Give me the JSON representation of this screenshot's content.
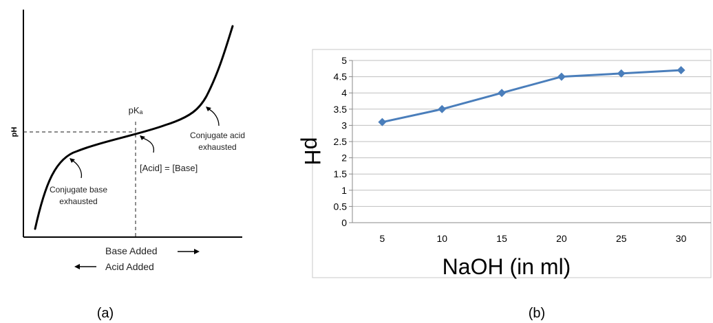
{
  "chart_data": [
    {
      "type": "line",
      "panel_label": "(a)",
      "ylabel": "pH",
      "pka_label": "pKₐ",
      "x_label_forward": "Base Added",
      "x_label_reverse": "Acid Added",
      "annotations": {
        "equal": "[Acid] = [Base]",
        "base_line1": "Conjugate base",
        "base_line2": "exhausted",
        "acid_line1": "Conjugate acid",
        "acid_line2": "exhausted"
      },
      "grid": false
    },
    {
      "type": "line",
      "panel_label": "(b)",
      "xlabel": "NaOH (in ml)",
      "ylabel": "pH",
      "categories": [
        "5",
        "10",
        "15",
        "20",
        "25",
        "30"
      ],
      "series": [
        {
          "values": [
            3.1,
            3.5,
            4.0,
            4.5,
            4.6,
            4.7
          ],
          "color": "#4a7ebb"
        }
      ],
      "ylim": [
        0,
        5
      ],
      "yticks": [
        "0",
        "0.5",
        "1",
        "1.5",
        "2",
        "2.5",
        "3",
        "3.5",
        "4",
        "4.5",
        "5"
      ],
      "grid": true,
      "line_color": "#4a7ebb"
    }
  ]
}
